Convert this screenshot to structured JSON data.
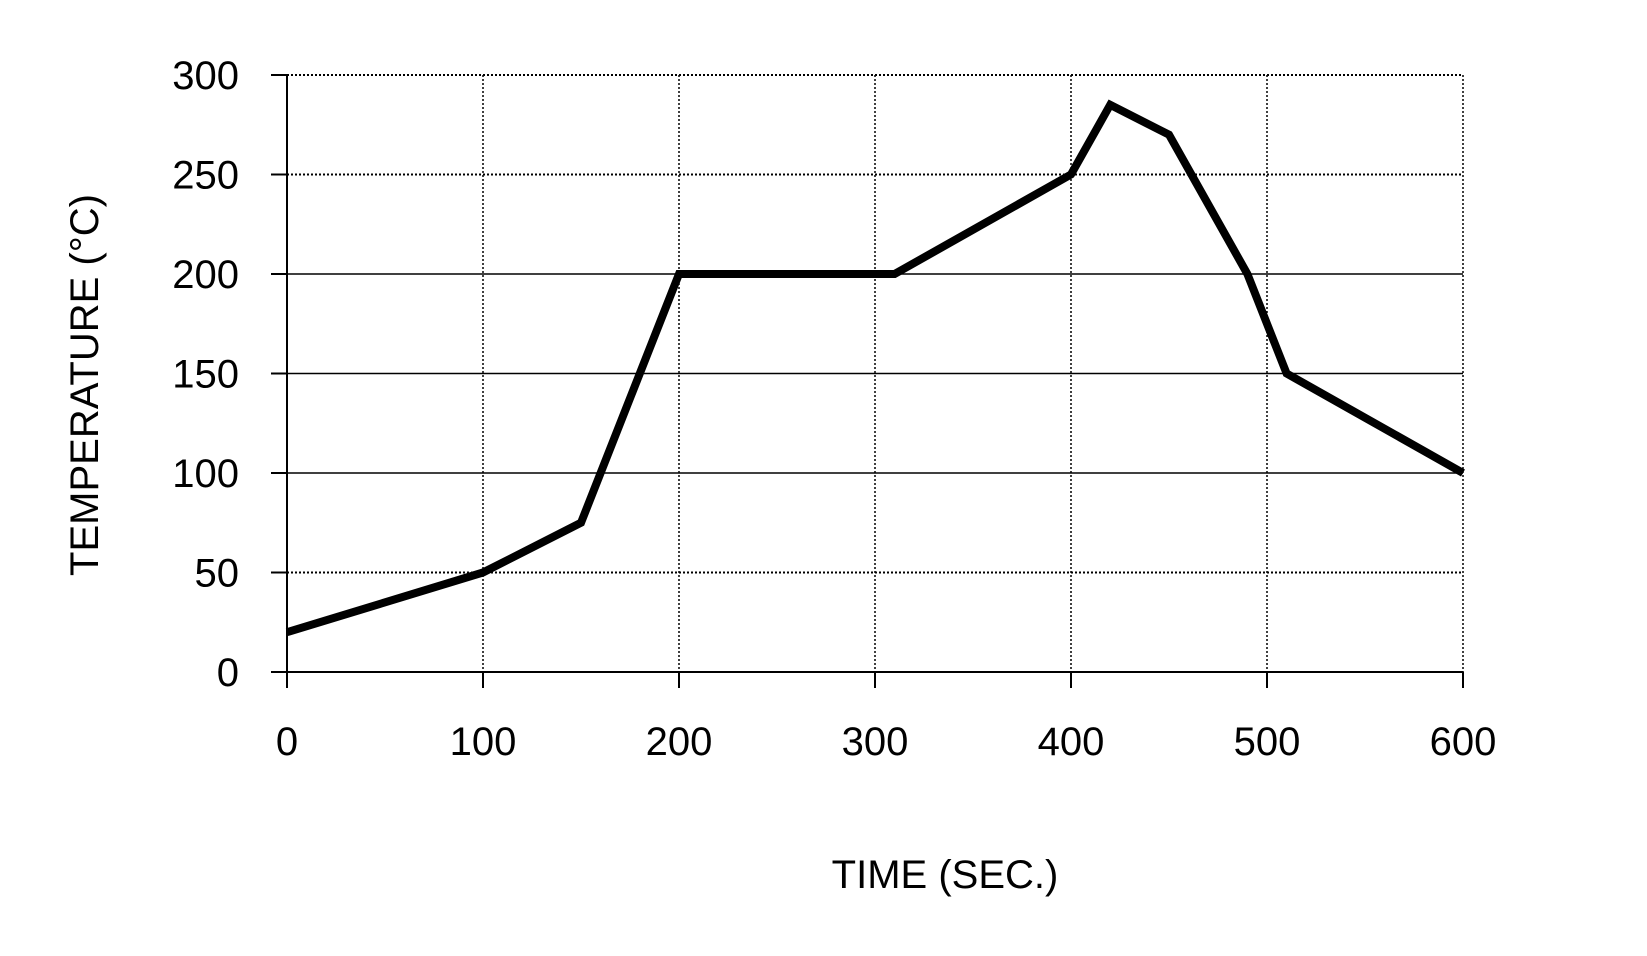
{
  "chart_data": {
    "type": "line",
    "title": "",
    "xlabel": "TIME (SEC.)",
    "ylabel": "TEMPERATURE (°C)",
    "xlim": [
      0,
      600
    ],
    "ylim": [
      0,
      300
    ],
    "x_ticks": [
      0,
      100,
      200,
      300,
      400,
      500,
      600
    ],
    "y_ticks": [
      0,
      50,
      100,
      150,
      200,
      250,
      300
    ],
    "x_tick_labels": [
      "0",
      "100",
      "200",
      "300",
      "400",
      "500",
      "600"
    ],
    "y_tick_labels": [
      "0",
      "50",
      "100",
      "150",
      "200",
      "250",
      "300"
    ],
    "grid": true,
    "legend": "none",
    "series": [
      {
        "color": "#000000",
        "x": [
          0,
          100,
          150,
          200,
          310,
          400,
          420,
          450,
          490,
          510,
          600
        ],
        "y": [
          20,
          50,
          75,
          200,
          200,
          250,
          285,
          270,
          200,
          150,
          100
        ]
      }
    ]
  }
}
